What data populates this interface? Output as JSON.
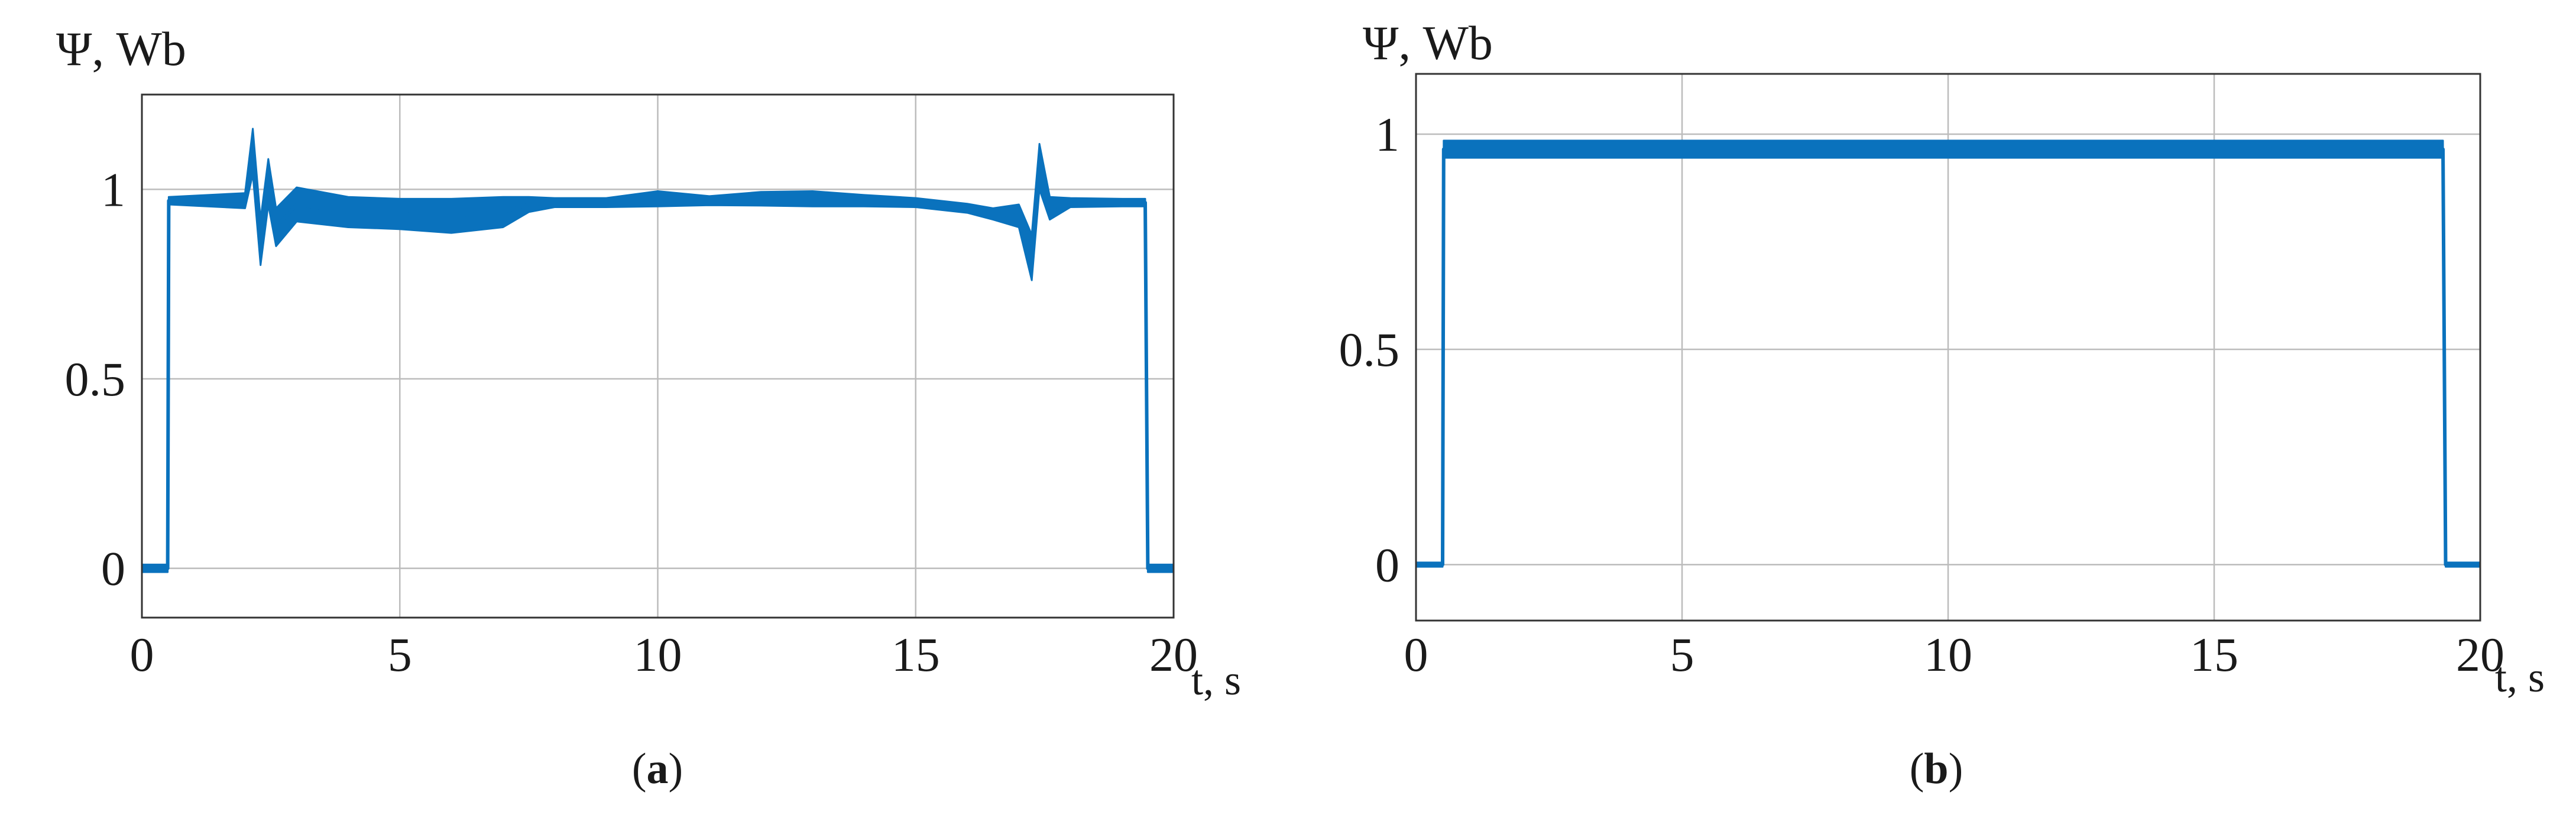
{
  "colors": {
    "series": "#0a72bd",
    "grid": "#bcbcbc",
    "frame": "#333333",
    "text": "#1a1a1a"
  },
  "chart_data": [
    {
      "type": "line",
      "panel": "a",
      "caption": {
        "open": "(",
        "letter": "a",
        "close": ")"
      },
      "ylabel": "Ψ, Wb",
      "xlabel": "t, s",
      "xlim": [
        0,
        20
      ],
      "ylim": [
        -0.13,
        1.25
      ],
      "xticks": [
        0,
        5,
        10,
        15,
        20
      ],
      "xtick_labels": [
        "0",
        "5",
        "10",
        "15",
        "20"
      ],
      "yticks": [
        0,
        0.5,
        1
      ],
      "ytick_labels": [
        "0",
        "0.5",
        "1"
      ],
      "grid": true,
      "series": [
        {
          "x": [
            0,
            0.5,
            0.52,
            2.0,
            2.15,
            2.3,
            2.45,
            2.6,
            3.0,
            4.0,
            5.0,
            6.0,
            7.0,
            7.5,
            8.0,
            9.0,
            10.0,
            11.0,
            12.0,
            13.0,
            14.0,
            15.0,
            16.0,
            16.5,
            17.0,
            17.25,
            17.4,
            17.6,
            18.0,
            19.0,
            19.45,
            19.5,
            20.0
          ],
          "y": [
            0.0,
            0.0,
            0.97,
            0.97,
            1.1,
            0.86,
            1.02,
            0.9,
            0.96,
            0.94,
            0.935,
            0.93,
            0.94,
            0.96,
            0.965,
            0.965,
            0.975,
            0.97,
            0.975,
            0.975,
            0.97,
            0.965,
            0.95,
            0.935,
            0.93,
            0.82,
            1.06,
            0.95,
            0.965,
            0.965,
            0.965,
            0.0,
            0.0
          ],
          "band": [
            0.01,
            0.01,
            0.01,
            0.02,
            0.06,
            0.06,
            0.06,
            0.05,
            0.045,
            0.04,
            0.04,
            0.045,
            0.04,
            0.02,
            0.012,
            0.012,
            0.02,
            0.012,
            0.018,
            0.02,
            0.015,
            0.012,
            0.012,
            0.015,
            0.03,
            0.06,
            0.06,
            0.03,
            0.012,
            0.01,
            0.01,
            0.01,
            0.01
          ]
        }
      ]
    },
    {
      "type": "line",
      "panel": "b",
      "caption": {
        "open": "(",
        "letter": "b",
        "close": ")"
      },
      "ylabel": "Ψ, Wb",
      "xlabel": "t, s",
      "xlim": [
        0,
        20
      ],
      "ylim": [
        -0.13,
        1.14
      ],
      "xticks": [
        0,
        5,
        10,
        15,
        20
      ],
      "xtick_labels": [
        "0",
        "5",
        "10",
        "15",
        "20"
      ],
      "yticks": [
        0,
        0.5,
        1
      ],
      "ytick_labels": [
        "0",
        "0.5",
        "1"
      ],
      "grid": true,
      "series": [
        {
          "x": [
            0,
            0.5,
            0.52,
            19.3,
            19.35,
            20.0
          ],
          "y": [
            0.0,
            0.0,
            0.965,
            0.965,
            0.0,
            0.0
          ],
          "band": [
            0.005,
            0.005,
            0.02,
            0.02,
            0.005,
            0.005
          ]
        }
      ]
    }
  ]
}
